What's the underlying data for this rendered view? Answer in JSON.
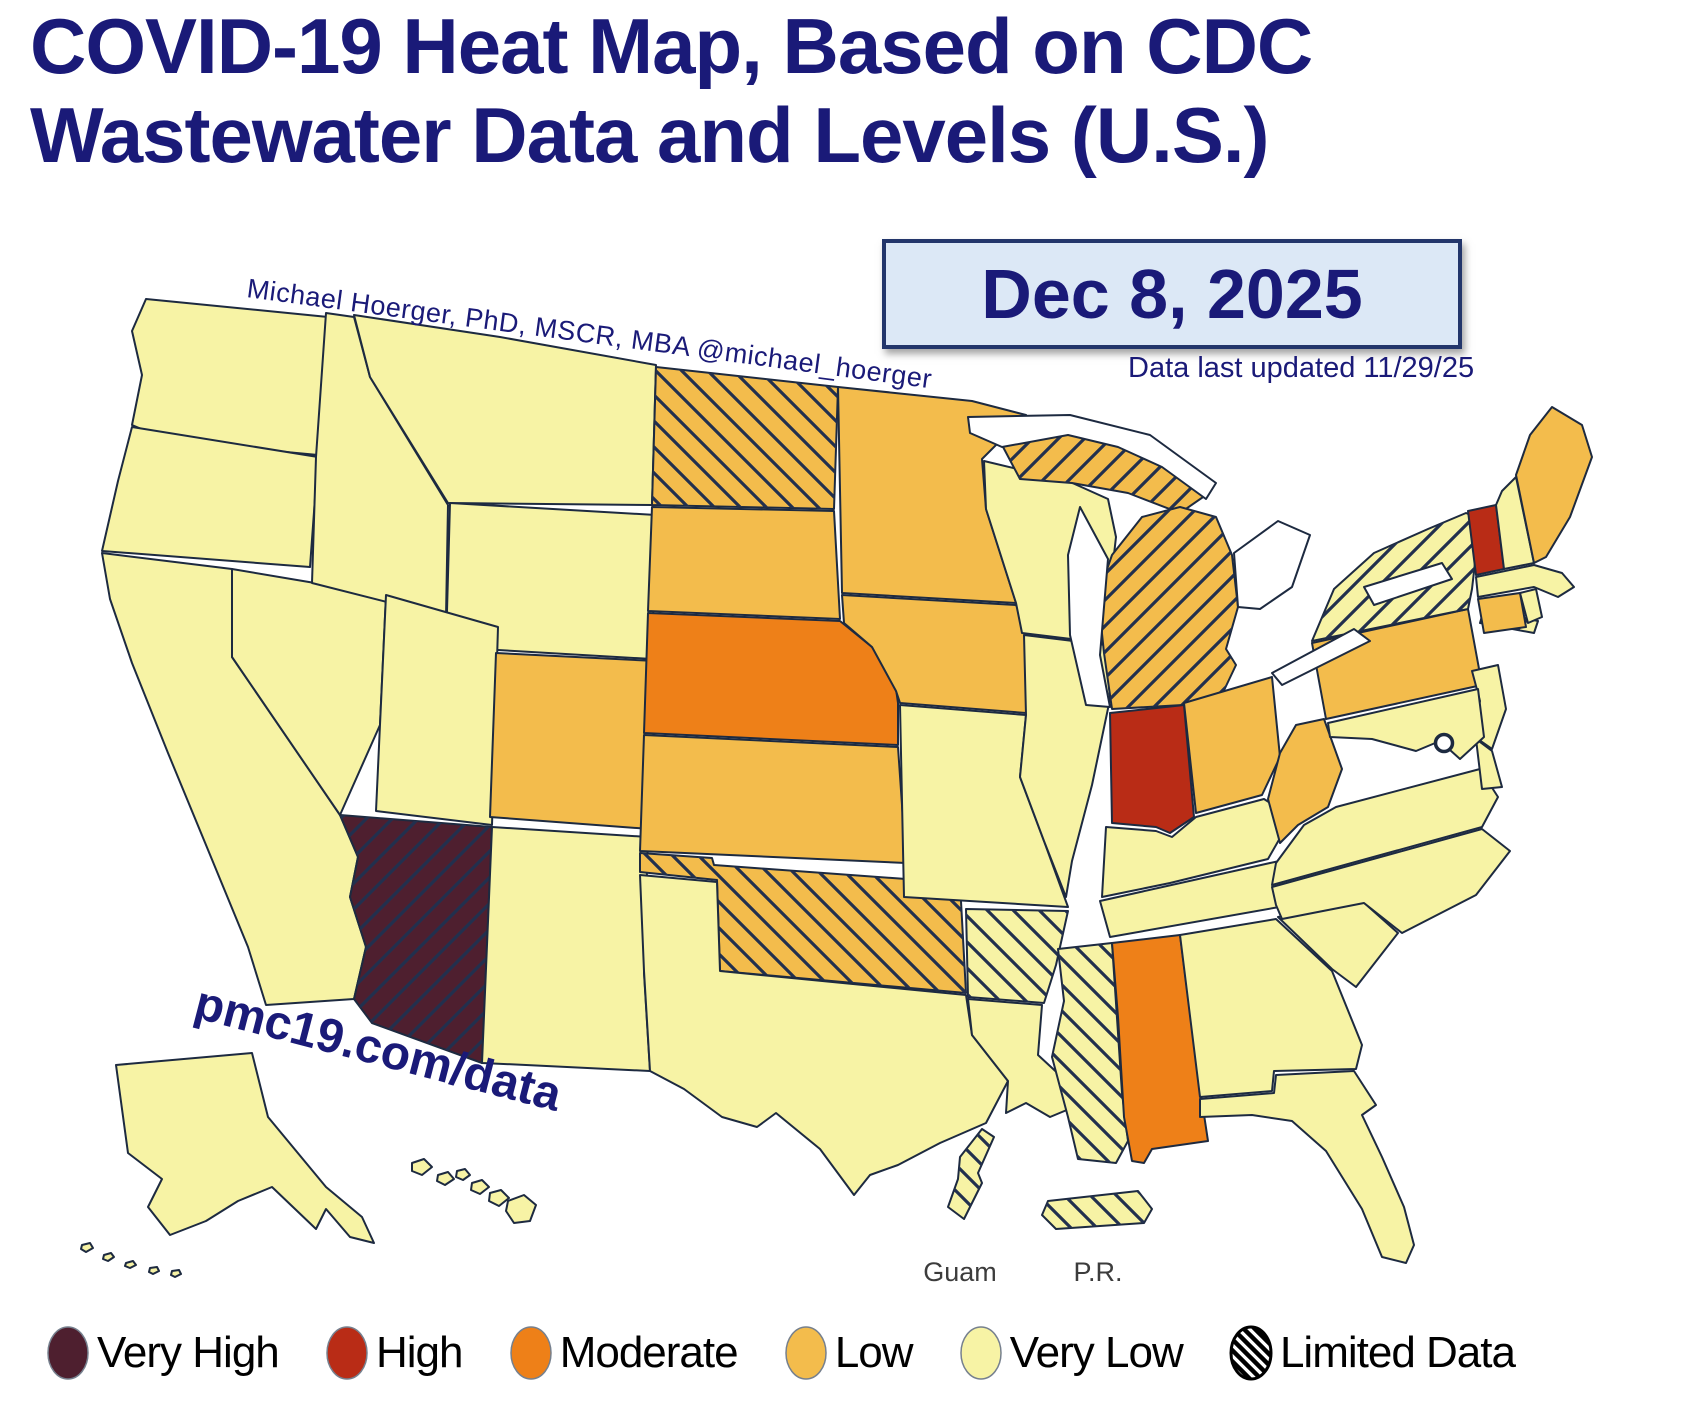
{
  "title": {
    "line1": "COVID-19 Heat Map, Based on CDC",
    "line2": "Wastewater Data and Levels (U.S.)"
  },
  "date_box": {
    "date": "Dec 8, 2025"
  },
  "updated_note": "Data last updated 11/29/25",
  "attribution": "Michael Hoerger, PhD, MSCR, MBA  @michael_hoerger",
  "watermark": "pmc19.com/data",
  "insets": {
    "guam_label": "Guam",
    "pr_label": "P.R."
  },
  "legend": {
    "items": [
      {
        "label": "Very High",
        "color": "#4e1f2f"
      },
      {
        "label": "High",
        "color": "#b92c16"
      },
      {
        "label": "Moderate",
        "color": "#ee8018"
      },
      {
        "label": "Low",
        "color": "#f3bc4c"
      },
      {
        "label": "Very Low",
        "color": "#f7f3a5"
      },
      {
        "label": "Limited Data",
        "color": null,
        "hatch": true
      }
    ]
  },
  "chart_data": {
    "type": "choropleth",
    "region": "United States",
    "metric": "COVID-19 wastewater level",
    "hatch_meaning": "Limited Data",
    "hatch_color": "#22304e",
    "level_colors": {
      "Very High": "#4e1f2f",
      "High": "#b92c16",
      "Moderate": "#ee8018",
      "Low": "#f3bc4c",
      "Very Low": "#f7f3a5"
    },
    "states": [
      {
        "id": "WA",
        "name": "Washington",
        "level": "Very Low",
        "limited_data": false
      },
      {
        "id": "OR",
        "name": "Oregon",
        "level": "Very Low",
        "limited_data": false
      },
      {
        "id": "CA",
        "name": "California",
        "level": "Very Low",
        "limited_data": false
      },
      {
        "id": "NV",
        "name": "Nevada",
        "level": "Very Low",
        "limited_data": false
      },
      {
        "id": "ID",
        "name": "Idaho",
        "level": "Very Low",
        "limited_data": false
      },
      {
        "id": "MT",
        "name": "Montana",
        "level": "Very Low",
        "limited_data": false
      },
      {
        "id": "WY",
        "name": "Wyoming",
        "level": "Very Low",
        "limited_data": false
      },
      {
        "id": "UT",
        "name": "Utah",
        "level": "Very Low",
        "limited_data": false
      },
      {
        "id": "CO",
        "name": "Colorado",
        "level": "Low",
        "limited_data": false
      },
      {
        "id": "AZ",
        "name": "Arizona",
        "level": "Very High",
        "limited_data": true,
        "hatch_dir": "asc"
      },
      {
        "id": "NM",
        "name": "New Mexico",
        "level": "Very Low",
        "limited_data": false
      },
      {
        "id": "ND",
        "name": "North Dakota",
        "level": "Low",
        "limited_data": true,
        "hatch_dir": "desc"
      },
      {
        "id": "SD",
        "name": "South Dakota",
        "level": "Low",
        "limited_data": false
      },
      {
        "id": "NE",
        "name": "Nebraska",
        "level": "Moderate",
        "limited_data": false
      },
      {
        "id": "KS",
        "name": "Kansas",
        "level": "Low",
        "limited_data": false
      },
      {
        "id": "OK",
        "name": "Oklahoma",
        "level": "Low",
        "limited_data": true,
        "hatch_dir": "desc"
      },
      {
        "id": "TX",
        "name": "Texas",
        "level": "Very Low",
        "limited_data": false
      },
      {
        "id": "MN",
        "name": "Minnesota",
        "level": "Low",
        "limited_data": false
      },
      {
        "id": "IA",
        "name": "Iowa",
        "level": "Low",
        "limited_data": false
      },
      {
        "id": "MO",
        "name": "Missouri",
        "level": "Very Low",
        "limited_data": false
      },
      {
        "id": "AR",
        "name": "Arkansas",
        "level": "Very Low",
        "limited_data": true,
        "hatch_dir": "desc"
      },
      {
        "id": "LA",
        "name": "Louisiana",
        "level": "Very Low",
        "limited_data": false
      },
      {
        "id": "WI",
        "name": "Wisconsin",
        "level": "Very Low",
        "limited_data": false
      },
      {
        "id": "IL",
        "name": "Illinois",
        "level": "Very Low",
        "limited_data": false
      },
      {
        "id": "MI",
        "name": "Michigan",
        "level": "Low",
        "limited_data": true,
        "hatch_dir": "asc"
      },
      {
        "id": "IN",
        "name": "Indiana",
        "level": "High",
        "limited_data": false
      },
      {
        "id": "OH",
        "name": "Ohio",
        "level": "Low",
        "limited_data": false
      },
      {
        "id": "KY",
        "name": "Kentucky",
        "level": "Very Low",
        "limited_data": false
      },
      {
        "id": "TN",
        "name": "Tennessee",
        "level": "Very Low",
        "limited_data": false
      },
      {
        "id": "MS",
        "name": "Mississippi",
        "level": "Very Low",
        "limited_data": true,
        "hatch_dir": "desc"
      },
      {
        "id": "AL",
        "name": "Alabama",
        "level": "Moderate",
        "limited_data": false
      },
      {
        "id": "GA",
        "name": "Georgia",
        "level": "Very Low",
        "limited_data": false
      },
      {
        "id": "FL",
        "name": "Florida",
        "level": "Very Low",
        "limited_data": false
      },
      {
        "id": "SC",
        "name": "South Carolina",
        "level": "Very Low",
        "limited_data": false
      },
      {
        "id": "NC",
        "name": "North Carolina",
        "level": "Very Low",
        "limited_data": false
      },
      {
        "id": "VA",
        "name": "Virginia",
        "level": "Very Low",
        "limited_data": false
      },
      {
        "id": "WV",
        "name": "West Virginia",
        "level": "Low",
        "limited_data": false
      },
      {
        "id": "PA",
        "name": "Pennsylvania",
        "level": "Low",
        "limited_data": false
      },
      {
        "id": "NY",
        "name": "New York",
        "level": "Very Low",
        "limited_data": true,
        "hatch_dir": "asc"
      },
      {
        "id": "NJ",
        "name": "New Jersey",
        "level": "Very Low",
        "limited_data": false
      },
      {
        "id": "DE",
        "name": "Delaware",
        "level": "Very Low",
        "limited_data": false
      },
      {
        "id": "MD",
        "name": "Maryland",
        "level": "Very Low",
        "limited_data": false
      },
      {
        "id": "DC",
        "name": "District of Columbia",
        "level": "",
        "limited_data": false,
        "marker": "open-circle"
      },
      {
        "id": "VT",
        "name": "Vermont",
        "level": "High",
        "limited_data": false
      },
      {
        "id": "NH",
        "name": "New Hampshire",
        "level": "Very Low",
        "limited_data": false
      },
      {
        "id": "ME",
        "name": "Maine",
        "level": "Low",
        "limited_data": false
      },
      {
        "id": "MA",
        "name": "Massachusetts",
        "level": "Very Low",
        "limited_data": false
      },
      {
        "id": "CT",
        "name": "Connecticut",
        "level": "Low",
        "limited_data": false
      },
      {
        "id": "RI",
        "name": "Rhode Island",
        "level": "Very Low",
        "limited_data": false
      },
      {
        "id": "AK",
        "name": "Alaska",
        "level": "Very Low",
        "limited_data": false
      },
      {
        "id": "HI",
        "name": "Hawaii",
        "level": "Very Low",
        "limited_data": false
      },
      {
        "id": "GU",
        "name": "Guam",
        "level": "Very Low",
        "limited_data": true,
        "hatch_dir": "desc"
      },
      {
        "id": "PR",
        "name": "Puerto Rico",
        "level": "Very Low",
        "limited_data": true,
        "hatch_dir": "desc"
      }
    ]
  }
}
